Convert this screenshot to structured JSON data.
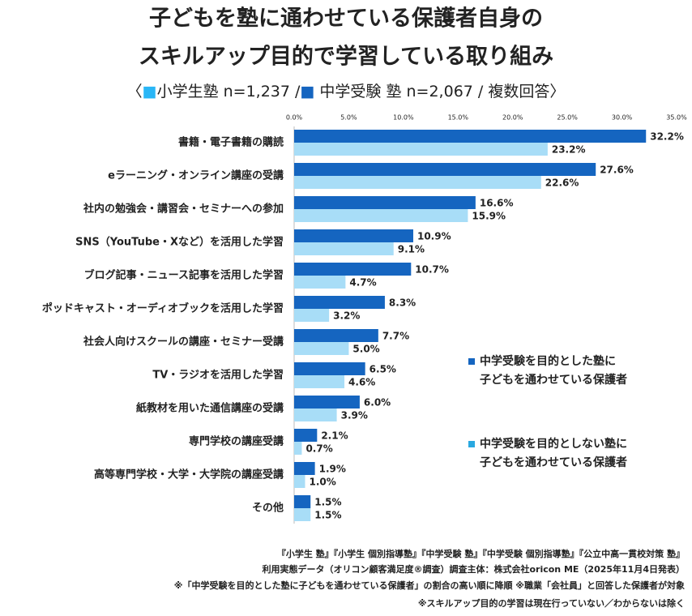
{
  "chart_data": {
    "type": "bar",
    "orientation": "horizontal",
    "title": [
      "子どもを塾に通わせている保護者自身の",
      "スキルアップ目的で学習している取り組み"
    ],
    "subtitle": [
      {
        "text": "〈",
        "color": "#222"
      },
      {
        "text": "■",
        "color": "#29b6f6"
      },
      {
        "text": "小学生塾 n=1,237 /",
        "color": "#222"
      },
      {
        "text": "■",
        "color": "#1565c0"
      },
      {
        "text": " 中学受験 塾 n=2,067 / 複数回答〉",
        "color": "#222"
      }
    ],
    "categories": [
      "書籍・電子書籍の購読",
      "eラーニング・オンライン講座の受講",
      "社内の勉強会・講習会・セミナーへの参加",
      "SNS（YouTube・Xなど）を活用した学習",
      "ブログ記事・ニュース記事を活用した学習",
      "ポッドキャスト・オーディオブックを活用した学習",
      "社会人向けスクールの講座・セミナー受講",
      "TV・ラジオを活用した学習",
      "紙教材を用いた通信講座の受講",
      "専門学校の講座受講",
      "高等専門学校・大学・大学院の講座受講",
      "その他"
    ],
    "series": [
      {
        "name": "中学受験を目的とした塾に\n子どもを通わせている保護者",
        "color": "#1565c0",
        "label_color": "#1565c0",
        "values": [
          32.2,
          27.6,
          16.6,
          10.9,
          10.7,
          8.3,
          7.7,
          6.5,
          6.0,
          2.1,
          1.9,
          1.5
        ],
        "value_labels": [
          "32.2%",
          "27.6%",
          "16.6%",
          "10.9%",
          "10.7%",
          "8.3%",
          "7.7%",
          "6.5%",
          "6.0%",
          "2.1%",
          "1.9%",
          "1.5%"
        ]
      },
      {
        "name": "中学受験を目的としない塾に\n子どもを通わせている保護者",
        "color": "#a8ddf7",
        "label_color": "#29a8e0",
        "values": [
          23.2,
          22.6,
          15.9,
          9.1,
          4.7,
          3.2,
          5.0,
          4.6,
          3.9,
          0.7,
          1.0,
          1.5
        ],
        "value_labels": [
          "23.2%",
          "22.6%",
          "15.9%",
          "9.1%",
          "4.7%",
          "3.2%",
          "5.0%",
          "4.6%",
          "3.9%",
          "0.7%",
          "1.0%",
          "1.5%"
        ]
      }
    ],
    "xlim": [
      0,
      35
    ],
    "xticks": [
      {
        "value": 0,
        "label": "0.0%"
      },
      {
        "value": 5,
        "label": "5.0%"
      },
      {
        "value": 10,
        "label": "10.0%"
      },
      {
        "value": 15,
        "label": "15.0%"
      },
      {
        "value": 20,
        "label": "20.0%"
      },
      {
        "value": 25,
        "label": "25.0%"
      },
      {
        "value": 30,
        "label": "30.0%"
      },
      {
        "value": 35,
        "label": "35.0%"
      }
    ],
    "notes": [
      "『小学生 塾』『小学生 個別指導塾』『中学受験 塾』『中学受験 個別指導塾』『公立中高一貫校対策 塾』",
      "利用実態データ（オリコン顧客満足度®調査）調査主体：株式会社oricon ME（2025年11月4日発表）",
      "※「中学受験を目的とした塾に子どもを通わせている保護者」の割合の高い順に降順 ※職業「会社員」と回答した保護者が対象",
      "※スキルアップ目的の学習は現在行っていない／わからないは除く"
    ]
  }
}
